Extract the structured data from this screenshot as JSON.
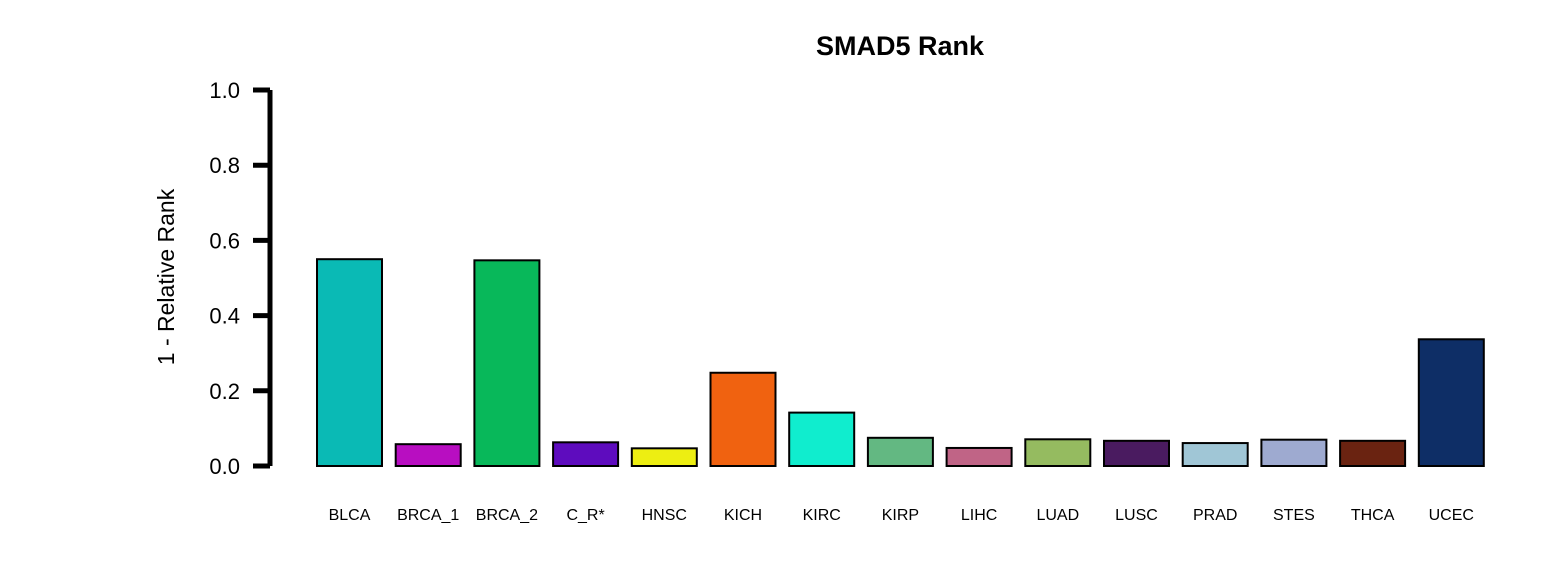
{
  "chart_data": {
    "type": "bar",
    "title": "SMAD5 Rank",
    "xlabel": "",
    "ylabel": "1 - Relative Rank",
    "ylim": [
      0,
      1.0
    ],
    "yticks": [
      "0.0",
      "0.2",
      "0.4",
      "0.6",
      "0.8",
      "1.0"
    ],
    "grid": false,
    "categories": [
      "BLCA",
      "BRCA_1",
      "BRCA_2",
      "C_R*",
      "HNSC",
      "KICH",
      "KIRC",
      "KIRP",
      "LIHC",
      "LUAD",
      "LUSC",
      "PRAD",
      "STES",
      "THCA",
      "UCEC"
    ],
    "values": [
      0.55,
      0.058,
      0.547,
      0.063,
      0.047,
      0.248,
      0.142,
      0.075,
      0.048,
      0.071,
      0.067,
      0.061,
      0.07,
      0.067,
      0.337
    ],
    "colors": [
      "#0ABAB5",
      "#B80EC1",
      "#08B85A",
      "#5E0CBE",
      "#EDEE12",
      "#F06210",
      "#10EDCE",
      "#63B882",
      "#C06486",
      "#95BB60",
      "#4A1B60",
      "#A0C6D6",
      "#9EAAD0",
      "#6A2311",
      "#0E2E66"
    ]
  }
}
